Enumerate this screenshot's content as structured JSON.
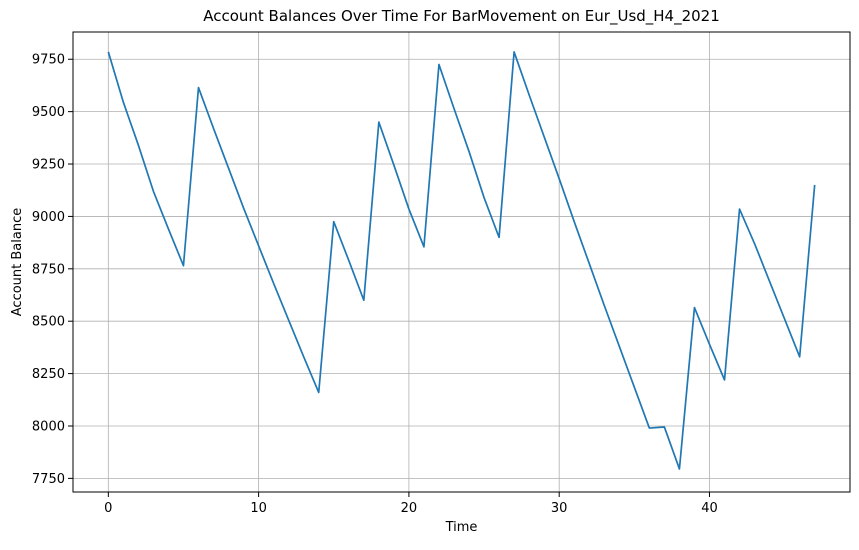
{
  "chart_data": {
    "type": "line",
    "title": "Account Balances Over Time For BarMovement on Eur_Usd_H4_2021",
    "xlabel": "Time",
    "ylabel": "Account Balance",
    "xlim": [
      -2.35,
      49.35
    ],
    "ylim": [
      7685,
      9880
    ],
    "xticks": [
      0,
      10,
      20,
      30,
      40
    ],
    "yticks": [
      7750,
      8000,
      8250,
      8500,
      8750,
      9000,
      9250,
      9500,
      9750
    ],
    "grid": true,
    "legend": "none",
    "series": [
      {
        "color": "#1f77b4",
        "x": [
          0,
          1,
          2,
          3,
          4,
          5,
          6,
          7,
          8,
          9,
          10,
          11,
          12,
          13,
          14,
          15,
          16,
          17,
          18,
          19,
          20,
          21,
          22,
          23,
          24,
          25,
          26,
          27,
          28,
          29,
          30,
          31,
          32,
          33,
          34,
          35,
          36,
          37,
          38,
          39,
          40,
          41,
          42,
          43,
          44,
          45,
          46,
          47
        ],
        "values": [
          9785,
          9545,
          9340,
          9120,
          8940,
          8765,
          9615,
          9420,
          9230,
          9040,
          8860,
          8680,
          8505,
          8330,
          8160,
          8975,
          8790,
          8600,
          9450,
          9245,
          9035,
          8855,
          9725,
          9515,
          9310,
          9090,
          8900,
          9785,
          9580,
          9380,
          9180,
          8975,
          8775,
          8575,
          8380,
          8185,
          7990,
          7995,
          7795,
          8565,
          8390,
          8220,
          9035,
          8870,
          8690,
          8510,
          8330,
          9150
        ]
      }
    ]
  }
}
